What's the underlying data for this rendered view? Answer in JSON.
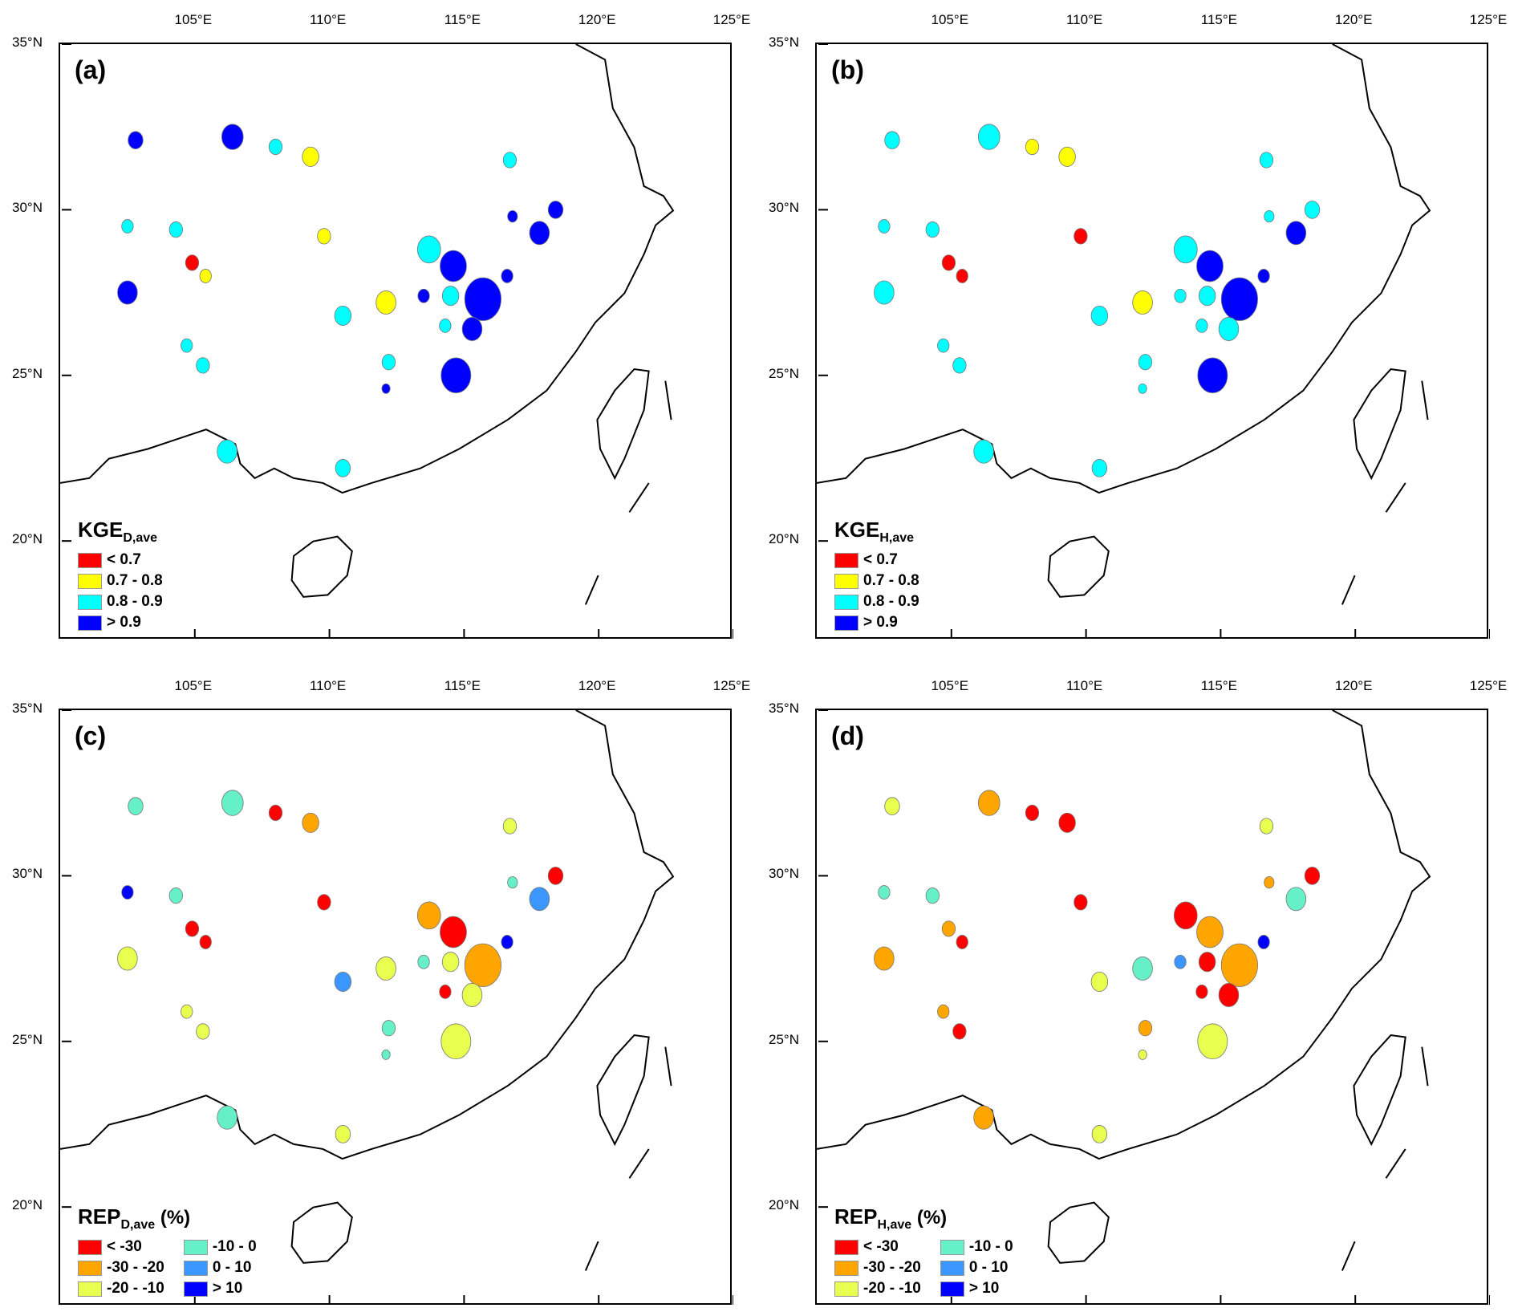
{
  "axes": {
    "lon_ticks": [
      "105°E",
      "110°E",
      "115°E",
      "120°E",
      "125°E"
    ],
    "lon_values": [
      105,
      110,
      115,
      120,
      125
    ],
    "lat_ticks": [
      "35°N",
      "30°N",
      "25°N",
      "20°N"
    ],
    "lat_values": [
      35,
      30,
      25,
      20
    ],
    "lon_range": [
      100,
      125
    ],
    "lat_range": [
      17,
      35
    ]
  },
  "panels": [
    {
      "label": "(a)",
      "title_main": "KGE",
      "title_sub": "D,ave",
      "title_unit": "",
      "scheme": "kge"
    },
    {
      "label": "(b)",
      "title_main": "KGE",
      "title_sub": "H,ave",
      "title_unit": "",
      "scheme": "kge"
    },
    {
      "label": "(c)",
      "title_main": "REP",
      "title_sub": "D,ave",
      "title_unit": " (%)",
      "scheme": "rep"
    },
    {
      "label": "(d)",
      "title_main": "REP",
      "title_sub": "H,ave",
      "title_unit": " (%)",
      "scheme": "rep"
    }
  ],
  "legends": {
    "kge": [
      {
        "label": "< 0.7",
        "color": "#ff0000"
      },
      {
        "label": "0.7 - 0.8",
        "color": "#ffff00"
      },
      {
        "label": "0.8 - 0.9",
        "color": "#00ffff"
      },
      {
        "label": "> 0.9",
        "color": "#0000ff"
      }
    ],
    "rep": [
      {
        "label": "< -30",
        "color": "#ff0000"
      },
      {
        "label": "-30 - -20",
        "color": "#ffa500"
      },
      {
        "label": "-20 - -10",
        "color": "#e8ff50"
      },
      {
        "label": "-10 - 0",
        "color": "#66f0c8"
      },
      {
        "label": "0 - 10",
        "color": "#3c96ff"
      },
      {
        "label": "> 10",
        "color": "#0000ff"
      }
    ]
  },
  "catchments": [
    {
      "lon": 102.8,
      "lat": 32.1,
      "cls": [
        3,
        2,
        3,
        2
      ]
    },
    {
      "lon": 106.4,
      "lat": 32.2,
      "cls": [
        3,
        2,
        3,
        1
      ]
    },
    {
      "lon": 108.0,
      "lat": 31.9,
      "cls": [
        2,
        1,
        0,
        0
      ]
    },
    {
      "lon": 109.3,
      "lat": 31.6,
      "cls": [
        1,
        1,
        1,
        0
      ]
    },
    {
      "lon": 116.7,
      "lat": 31.5,
      "cls": [
        2,
        2,
        2,
        2
      ]
    },
    {
      "lon": 102.5,
      "lat": 29.5,
      "cls": [
        2,
        2,
        5,
        3
      ]
    },
    {
      "lon": 104.3,
      "lat": 29.4,
      "cls": [
        2,
        2,
        3,
        3
      ]
    },
    {
      "lon": 104.9,
      "lat": 28.4,
      "cls": [
        0,
        0,
        0,
        1
      ]
    },
    {
      "lon": 105.4,
      "lat": 28.0,
      "cls": [
        1,
        0,
        0,
        0
      ]
    },
    {
      "lon": 102.5,
      "lat": 27.5,
      "cls": [
        3,
        2,
        2,
        1
      ]
    },
    {
      "lon": 109.8,
      "lat": 29.2,
      "cls": [
        1,
        0,
        0,
        0
      ]
    },
    {
      "lon": 113.7,
      "lat": 28.8,
      "cls": [
        2,
        2,
        1,
        0
      ]
    },
    {
      "lon": 114.6,
      "lat": 28.3,
      "cls": [
        3,
        3,
        0,
        1
      ]
    },
    {
      "lon": 117.8,
      "lat": 29.3,
      "cls": [
        3,
        3,
        4,
        3
      ]
    },
    {
      "lon": 118.4,
      "lat": 30.0,
      "cls": [
        3,
        2,
        0,
        0
      ]
    },
    {
      "lon": 116.8,
      "lat": 29.8,
      "cls": [
        3,
        2,
        3,
        1
      ]
    },
    {
      "lon": 115.7,
      "lat": 27.3,
      "cls": [
        3,
        3,
        1,
        1
      ]
    },
    {
      "lon": 114.5,
      "lat": 27.4,
      "cls": [
        2,
        2,
        2,
        0
      ]
    },
    {
      "lon": 112.1,
      "lat": 27.2,
      "cls": [
        1,
        1,
        2,
        3
      ]
    },
    {
      "lon": 110.5,
      "lat": 26.8,
      "cls": [
        2,
        2,
        4,
        2
      ]
    },
    {
      "lon": 104.7,
      "lat": 25.9,
      "cls": [
        2,
        2,
        2,
        1
      ]
    },
    {
      "lon": 105.3,
      "lat": 25.3,
      "cls": [
        2,
        2,
        2,
        0
      ]
    },
    {
      "lon": 114.7,
      "lat": 25.0,
      "cls": [
        3,
        3,
        2,
        2
      ]
    },
    {
      "lon": 112.2,
      "lat": 25.4,
      "cls": [
        2,
        2,
        3,
        1
      ]
    },
    {
      "lon": 106.2,
      "lat": 22.7,
      "cls": [
        2,
        2,
        3,
        1
      ]
    },
    {
      "lon": 110.5,
      "lat": 22.2,
      "cls": [
        2,
        2,
        2,
        2
      ]
    },
    {
      "lon": 113.5,
      "lat": 27.4,
      "cls": [
        3,
        2,
        3,
        4
      ]
    },
    {
      "lon": 114.3,
      "lat": 26.5,
      "cls": [
        2,
        2,
        0,
        0
      ]
    },
    {
      "lon": 115.3,
      "lat": 26.4,
      "cls": [
        3,
        2,
        2,
        0
      ]
    },
    {
      "lon": 116.6,
      "lat": 28.0,
      "cls": [
        3,
        3,
        5,
        5
      ]
    },
    {
      "lon": 112.1,
      "lat": 24.6,
      "cls": [
        3,
        2,
        3,
        2
      ]
    }
  ]
}
